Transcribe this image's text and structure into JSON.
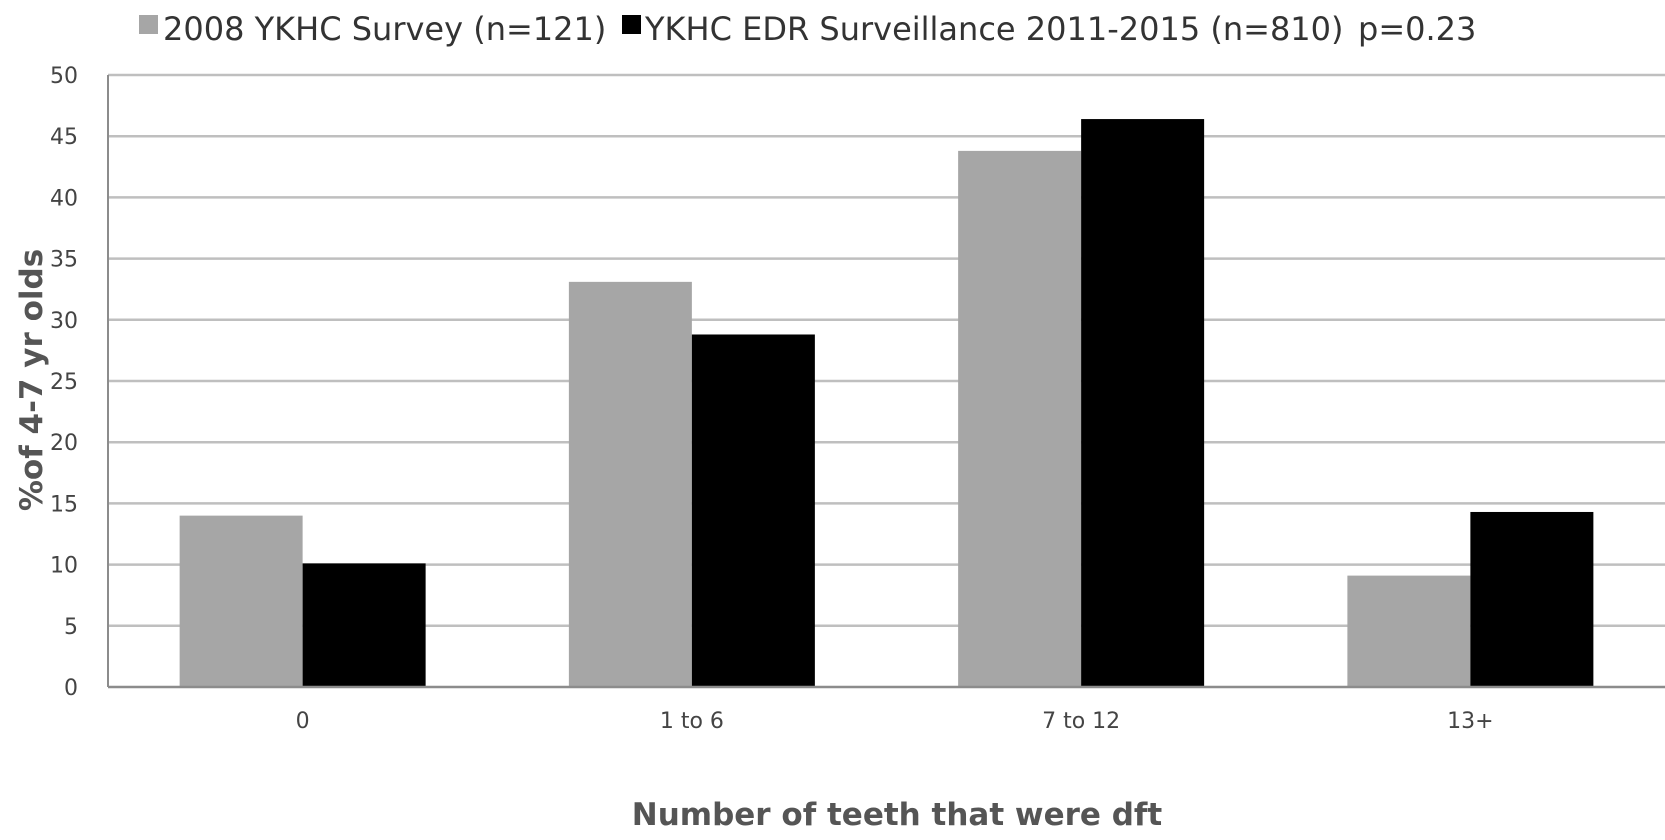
{
  "chart_data": {
    "type": "bar",
    "categories": [
      "0",
      "1 to 6",
      "7 to 12",
      "13+"
    ],
    "series": [
      {
        "name": "2008 YKHC Survey (n=121)",
        "values": [
          14.0,
          33.1,
          43.8,
          9.1
        ],
        "color": "#a6a6a6"
      },
      {
        "name": "YKHC EDR Surveillance 2011-2015 (n=810)",
        "values": [
          10.1,
          28.8,
          46.4,
          14.3
        ],
        "color": "#000000"
      }
    ],
    "annotation": "p=0.23",
    "xlabel": "Number of teeth that were dft",
    "ylabel": "%of 4-7 yr olds",
    "ylim": [
      0,
      50
    ],
    "yticks": [
      0,
      5,
      10,
      15,
      20,
      25,
      30,
      35,
      40,
      45,
      50
    ],
    "grid": true,
    "legend_position": "top"
  }
}
